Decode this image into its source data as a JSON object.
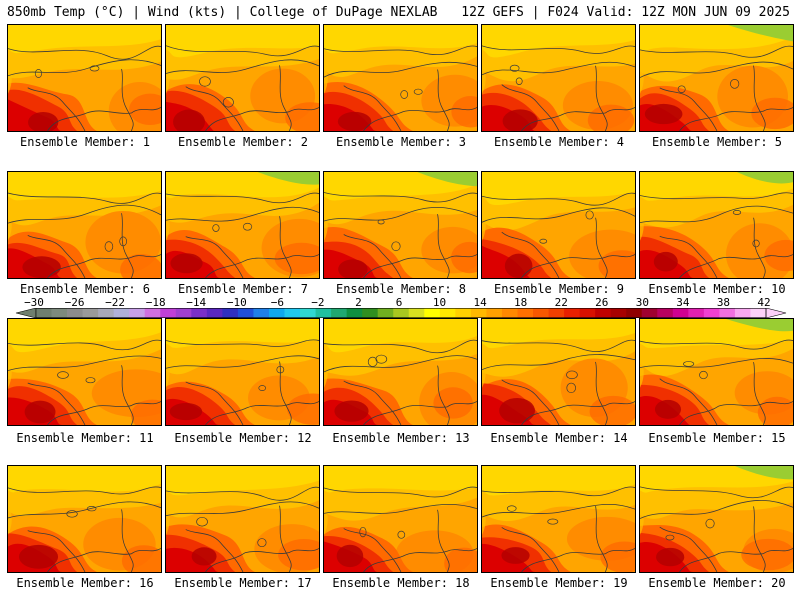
{
  "header": {
    "left": "850mb Temp (°C) | Wind (kts) | College of DuPage NEXLAB",
    "right": "12Z GEFS | F024 Valid: 12Z MON JUN 09 2025"
  },
  "members": [
    "Ensemble Member: 1",
    "Ensemble Member: 2",
    "Ensemble Member: 3",
    "Ensemble Member: 4",
    "Ensemble Member: 5",
    "Ensemble Member: 6",
    "Ensemble Member: 7",
    "Ensemble Member: 8",
    "Ensemble Member: 9",
    "Ensemble Member: 10",
    "Ensemble Member: 11",
    "Ensemble Member: 12",
    "Ensemble Member: 13",
    "Ensemble Member: 14",
    "Ensemble Member: 15",
    "Ensemble Member: 16",
    "Ensemble Member: 17",
    "Ensemble Member: 18",
    "Ensemble Member: 19",
    "Ensemble Member: 20"
  ],
  "colorbar": {
    "ticks": [
      "−30",
      "−26",
      "−22",
      "−18",
      "−14",
      "−10",
      "−6",
      "−2",
      "2",
      "6",
      "10",
      "14",
      "18",
      "22",
      "26",
      "30",
      "34",
      "38",
      "42"
    ],
    "colors": [
      "#6f7f6f",
      "#7d8a7d",
      "#8c8c8c",
      "#9a9a9a",
      "#a8a8b8",
      "#b0b0d8",
      "#c8a0e8",
      "#d070e0",
      "#c040d8",
      "#a040d0",
      "#7a30c8",
      "#5a28c0",
      "#3030c0",
      "#2050d8",
      "#2080e8",
      "#10a8f0",
      "#20c8f0",
      "#30d8d0",
      "#20c0a0",
      "#20a870",
      "#109040",
      "#309020",
      "#70b020",
      "#a8c820",
      "#d8e020",
      "#ffff00",
      "#ffe800",
      "#ffd000",
      "#ffb800",
      "#ffa000",
      "#ff8800",
      "#ff7000",
      "#f85800",
      "#f04000",
      "#e82000",
      "#d81000",
      "#c00000",
      "#a80000",
      "#900000",
      "#a00030",
      "#b80060",
      "#d00090",
      "#e020b0",
      "#f040d0",
      "#f070e0",
      "#f8a8f0",
      "#fcd0f8"
    ]
  },
  "palette": {
    "green": "#9acd32",
    "yellow": "#ffd700",
    "yellow2": "#ffc000",
    "orange": "#ffa500",
    "orange2": "#ff8c00",
    "orange3": "#ff6a00",
    "red": "#f03000",
    "red2": "#dc0000",
    "darkred": "#b40000"
  }
}
